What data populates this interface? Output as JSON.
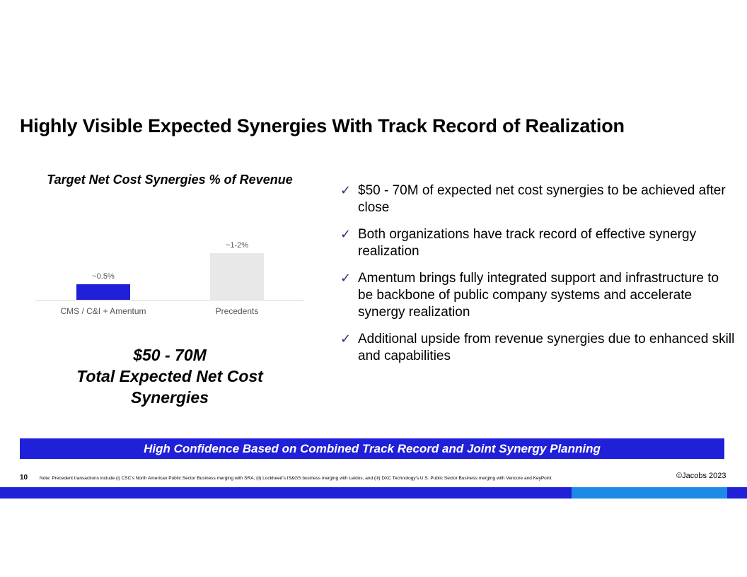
{
  "slide": {
    "title": "Highly Visible Expected Synergies With Track Record of Realization",
    "chart_title": "Target Net Cost Synergies % of Revenue",
    "total_line1": "$50 - 70M",
    "total_line2": "Total Expected Net Cost",
    "total_line3": "Synergies",
    "check_icon": "✓",
    "bullets": [
      "$50 - 70M of expected net cost synergies to be achieved after close",
      "Both organizations have track record of effective synergy realization",
      "Amentum brings fully integrated support and infrastructure to be backbone of public company systems and accelerate synergy realization",
      "Additional upside from revenue synergies due to enhanced skill and capabilities"
    ],
    "banner": "High Confidence Based on Combined Track Record and Joint Synergy Planning",
    "page_number": "10",
    "note": "Note: Precedent transactions include (i) CSC's North American Public Sector Business merging with SRA, (ii) Lockheed's IS&GS business merging with Leidos, and (iii) DXC Technology's U.S. Public Sector Business merging with Vencore and KeyPoint",
    "copyright": "©Jacobs 2023"
  },
  "colors": {
    "brand_blue": "#2020d8",
    "accent_light_blue": "#1c8ae6",
    "precedent_bar": "#e8e8e8"
  },
  "chart_data": {
    "type": "bar",
    "categories": [
      "CMS / C&I + Amentum",
      "Precedents"
    ],
    "values": [
      0.5,
      1.5
    ],
    "data_labels": [
      "~0.5%",
      "~1-2%"
    ],
    "bar_colors": [
      "#2020d8",
      "#e8e8e8"
    ],
    "title": "Target Net Cost Synergies % of Revenue",
    "xlabel": "",
    "ylabel": "",
    "ylim": [
      0,
      1.5
    ],
    "grid": false
  }
}
